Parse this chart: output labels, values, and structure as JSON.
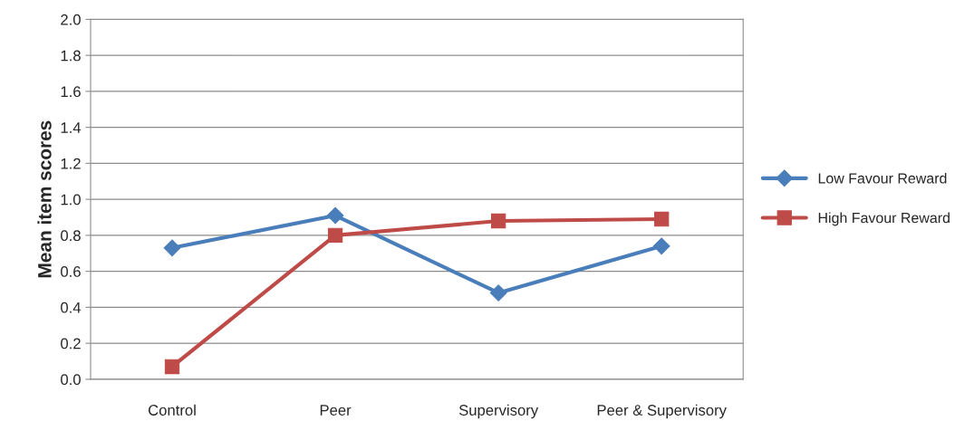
{
  "chart_data": {
    "type": "line",
    "ylabel": "Mean item scores",
    "categories": [
      "Control",
      "Peer",
      "Supervisory",
      "Peer & Supervisory"
    ],
    "series": [
      {
        "name": "Low Favour Reward",
        "color": "#4a7ebb",
        "marker": "diamond",
        "values": [
          0.73,
          0.91,
          0.48,
          0.74
        ]
      },
      {
        "name": "High Favour Reward",
        "color": "#be4b48",
        "marker": "square",
        "values": [
          0.07,
          0.8,
          0.88,
          0.89
        ]
      }
    ],
    "ylim": [
      0,
      2
    ],
    "yticks": [
      {
        "value": 0,
        "label": "0.0"
      },
      {
        "value": 0.2,
        "label": "0.2"
      },
      {
        "value": 0.4,
        "label": "0.4"
      },
      {
        "value": 0.6,
        "label": "0.6"
      },
      {
        "value": 0.8,
        "label": "0.8"
      },
      {
        "value": 1,
        "label": "1.0"
      },
      {
        "value": 1.2,
        "label": "1.2"
      },
      {
        "value": 1.4,
        "label": "1.4"
      },
      {
        "value": 1.6,
        "label": "1.6"
      },
      {
        "value": 1.8,
        "label": "1.8"
      },
      {
        "value": 2,
        "label": "2.0"
      }
    ],
    "grid": "y",
    "legend": "right",
    "line_style": "solid"
  }
}
